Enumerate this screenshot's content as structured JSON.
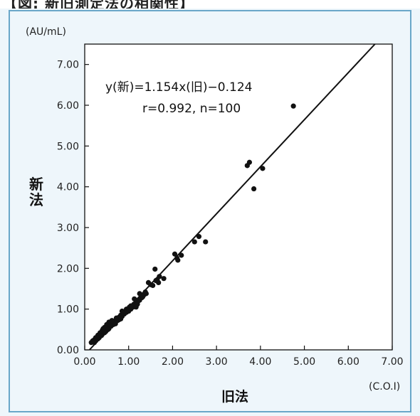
{
  "chart_data": {
    "type": "scatter",
    "title": "",
    "y_unit": "(AU/mL)",
    "x_unit": "(C.O.I)",
    "xlabel": "旧法",
    "ylabel": "新法",
    "xlim": [
      0,
      7.0
    ],
    "ylim": [
      0,
      7.5
    ],
    "x_ticks": [
      "0.00",
      "1.00",
      "2.00",
      "3.00",
      "4.00",
      "5.00",
      "6.00",
      "7.00"
    ],
    "y_ticks": [
      "0.00",
      "1.00",
      "2.00",
      "3.00",
      "4.00",
      "5.00",
      "6.00",
      "7.00"
    ],
    "grid": false,
    "annotations": {
      "equation": "y(新)=1.154x(旧)−0.124",
      "stats": "r=0.992, n=100"
    },
    "regression": {
      "slope": 1.154,
      "intercept": -0.124
    },
    "points": [
      [
        0.15,
        0.18
      ],
      [
        0.2,
        0.2
      ],
      [
        0.22,
        0.25
      ],
      [
        0.25,
        0.22
      ],
      [
        0.28,
        0.3
      ],
      [
        0.3,
        0.27
      ],
      [
        0.32,
        0.33
      ],
      [
        0.35,
        0.35
      ],
      [
        0.37,
        0.4
      ],
      [
        0.4,
        0.38
      ],
      [
        0.42,
        0.45
      ],
      [
        0.45,
        0.42
      ],
      [
        0.47,
        0.5
      ],
      [
        0.5,
        0.48
      ],
      [
        0.52,
        0.55
      ],
      [
        0.55,
        0.52
      ],
      [
        0.57,
        0.6
      ],
      [
        0.6,
        0.58
      ],
      [
        0.62,
        0.65
      ],
      [
        0.65,
        0.62
      ],
      [
        0.67,
        0.7
      ],
      [
        0.7,
        0.68
      ],
      [
        0.72,
        0.75
      ],
      [
        0.75,
        0.72
      ],
      [
        0.78,
        0.8
      ],
      [
        0.8,
        0.78
      ],
      [
        0.82,
        0.85
      ],
      [
        0.85,
        0.82
      ],
      [
        0.88,
        0.9
      ],
      [
        0.9,
        0.88
      ],
      [
        0.5,
        0.62
      ],
      [
        0.55,
        0.68
      ],
      [
        0.6,
        0.66
      ],
      [
        0.65,
        0.7
      ],
      [
        0.7,
        0.64
      ],
      [
        0.45,
        0.55
      ],
      [
        0.4,
        0.48
      ],
      [
        0.35,
        0.42
      ],
      [
        0.3,
        0.36
      ],
      [
        0.25,
        0.3
      ],
      [
        0.92,
        0.95
      ],
      [
        0.95,
        1.0
      ],
      [
        0.98,
        0.98
      ],
      [
        1.0,
        1.02
      ],
      [
        1.02,
        1.05
      ],
      [
        1.05,
        1.0
      ],
      [
        1.08,
        1.08
      ],
      [
        1.1,
        1.05
      ],
      [
        1.12,
        1.12
      ],
      [
        1.15,
        1.1
      ],
      [
        1.18,
        1.15
      ],
      [
        1.2,
        1.12
      ],
      [
        1.22,
        1.2
      ],
      [
        1.25,
        1.22
      ],
      [
        1.28,
        1.3
      ],
      [
        1.3,
        1.28
      ],
      [
        1.35,
        1.35
      ],
      [
        1.4,
        1.38
      ],
      [
        1.45,
        1.65
      ],
      [
        1.5,
        1.6
      ],
      [
        1.55,
        1.58
      ],
      [
        1.6,
        1.98
      ],
      [
        1.62,
        1.7
      ],
      [
        1.65,
        1.72
      ],
      [
        1.68,
        1.65
      ],
      [
        1.7,
        1.8
      ],
      [
        0.85,
        0.95
      ],
      [
        0.95,
        0.92
      ],
      [
        1.0,
        0.95
      ],
      [
        1.05,
        1.08
      ],
      [
        0.72,
        0.78
      ],
      [
        0.78,
        0.74
      ],
      [
        0.82,
        0.76
      ],
      [
        0.62,
        0.72
      ],
      [
        0.58,
        0.6
      ],
      [
        0.18,
        0.22
      ],
      [
        0.22,
        0.18
      ],
      [
        0.33,
        0.3
      ],
      [
        0.38,
        0.35
      ],
      [
        0.48,
        0.45
      ],
      [
        1.13,
        1.25
      ],
      [
        1.17,
        1.05
      ],
      [
        1.25,
        1.38
      ],
      [
        1.32,
        1.3
      ],
      [
        1.38,
        1.42
      ],
      [
        2.05,
        2.35
      ],
      [
        2.1,
        2.25
      ],
      [
        2.12,
        2.2
      ],
      [
        2.2,
        2.32
      ],
      [
        2.5,
        2.65
      ],
      [
        2.6,
        2.78
      ],
      [
        2.75,
        2.65
      ],
      [
        3.7,
        4.52
      ],
      [
        3.75,
        4.6
      ],
      [
        3.85,
        3.95
      ],
      [
        4.05,
        4.45
      ],
      [
        4.75,
        5.98
      ],
      [
        1.8,
        1.75
      ],
      [
        0.42,
        0.52
      ],
      [
        0.53,
        0.5
      ]
    ]
  }
}
